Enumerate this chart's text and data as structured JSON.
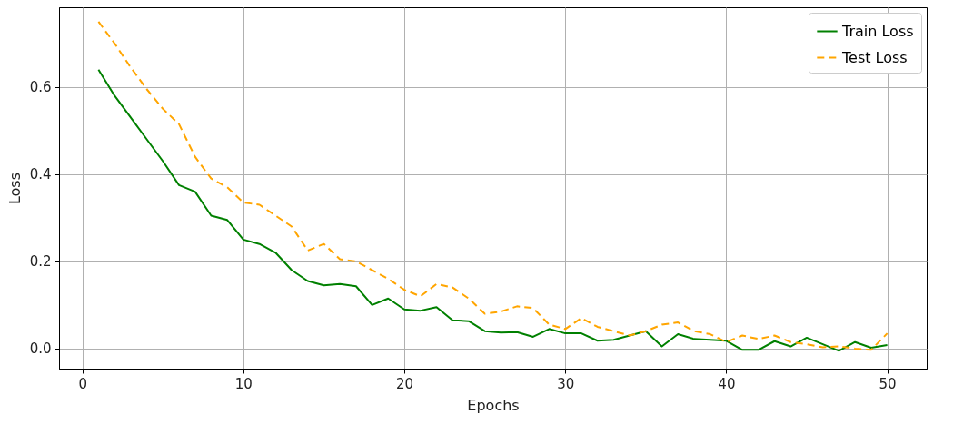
{
  "chart_data": {
    "type": "line",
    "xlabel": "Epochs",
    "ylabel": "Loss",
    "x": [
      1,
      2,
      3,
      4,
      5,
      6,
      7,
      8,
      9,
      10,
      11,
      12,
      13,
      14,
      15,
      16,
      17,
      18,
      19,
      20,
      21,
      22,
      23,
      24,
      25,
      26,
      27,
      28,
      29,
      30,
      31,
      32,
      33,
      34,
      35,
      36,
      37,
      38,
      39,
      40,
      41,
      42,
      43,
      44,
      45,
      46,
      47,
      48,
      49,
      50
    ],
    "series": [
      {
        "name": "Train Loss",
        "color": "#008000",
        "line_style": "solid",
        "values": [
          0.64,
          0.58,
          0.53,
          0.48,
          0.43,
          0.375,
          0.36,
          0.305,
          0.295,
          0.25,
          0.24,
          0.22,
          0.18,
          0.155,
          0.145,
          0.148,
          0.143,
          0.1,
          0.115,
          0.09,
          0.087,
          0.095,
          0.065,
          0.063,
          0.04,
          0.037,
          0.038,
          0.027,
          0.045,
          0.035,
          0.035,
          0.018,
          0.02,
          0.03,
          0.04,
          0.005,
          0.033,
          0.022,
          0.02,
          0.018,
          -0.003,
          -0.003,
          0.017,
          0.005,
          0.025,
          0.01,
          -0.005,
          0.015,
          0.002,
          0.008
        ]
      },
      {
        "name": "Test Loss",
        "color": "#ffa500",
        "line_style": "dashed",
        "values": [
          0.75,
          0.7,
          0.645,
          0.595,
          0.55,
          0.515,
          0.44,
          0.39,
          0.37,
          0.335,
          0.33,
          0.305,
          0.28,
          0.225,
          0.24,
          0.205,
          0.2,
          0.18,
          0.16,
          0.135,
          0.12,
          0.148,
          0.14,
          0.115,
          0.08,
          0.085,
          0.097,
          0.093,
          0.055,
          0.045,
          0.07,
          0.05,
          0.04,
          0.03,
          0.04,
          0.055,
          0.06,
          0.04,
          0.033,
          0.015,
          0.03,
          0.022,
          0.03,
          0.015,
          0.01,
          0.003,
          0.005,
          0,
          -0.003,
          0.035
        ]
      }
    ],
    "xlim": [
      -1.45,
      52.45
    ],
    "xticks": [
      0,
      10,
      20,
      30,
      40,
      50
    ],
    "ylim": [
      -0.046,
      0.783
    ],
    "yticks": [
      {
        "value": 0,
        "label": "0.0"
      },
      {
        "value": 0.2,
        "label": "0.2"
      },
      {
        "value": 0.4,
        "label": "0.4"
      },
      {
        "value": 0.6,
        "label": "0.6"
      }
    ],
    "grid": true,
    "legend": "top right"
  }
}
